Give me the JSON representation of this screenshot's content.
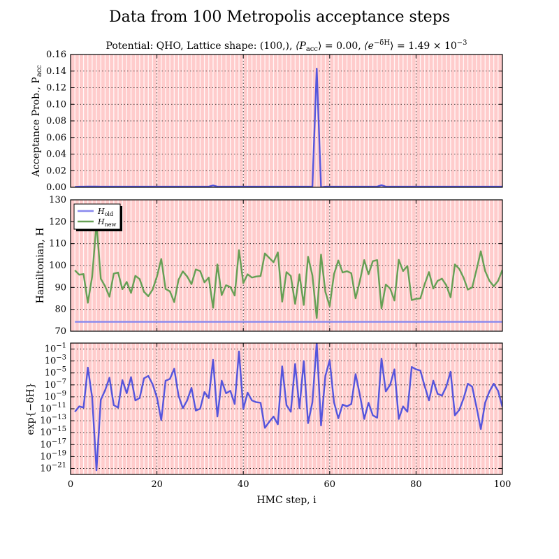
{
  "chart_data": {
    "type": "line",
    "title": "Data from 100 Metropolis acceptance steps",
    "subtitle_parts": {
      "prefix": "Potential: QHO, Lattice shape: (100,), ",
      "pacc": "⟨P",
      "pacc_sub": "acc",
      "pacc_val": "⟩ = 0.00, ",
      "edh": "⟨e",
      "edh_sup": "−δH",
      "edh_val": "⟩ = 1.49 × 10",
      "edh_exp": "−3"
    },
    "xlabel": "HMC step, i",
    "xlim": [
      0,
      100
    ],
    "x_ticks": [
      0,
      20,
      40,
      60,
      80,
      100
    ],
    "accepted_steps_color": "#ffcccc",
    "panels": [
      {
        "id": "acceptance",
        "ylabel": "Acceptance Prob., P",
        "ylabel_sub": "acc",
        "ylim": [
          0,
          0.16
        ],
        "y_ticks": [
          0.0,
          0.02,
          0.04,
          0.06,
          0.08,
          0.1,
          0.12,
          0.14,
          0.16
        ],
        "y_tick_labels": [
          "0.00",
          "0.02",
          "0.04",
          "0.06",
          "0.08",
          "0.10",
          "0.12",
          "0.14",
          "0.16"
        ],
        "series": [
          {
            "color": "#5555dd",
            "x": [
              1,
              2,
              3,
              4,
              5,
              6,
              7,
              8,
              9,
              10,
              11,
              12,
              13,
              14,
              15,
              16,
              17,
              18,
              19,
              20,
              21,
              22,
              23,
              24,
              25,
              26,
              27,
              28,
              29,
              30,
              31,
              32,
              33,
              34,
              35,
              36,
              37,
              38,
              39,
              40,
              41,
              42,
              43,
              44,
              45,
              46,
              47,
              48,
              49,
              50,
              51,
              52,
              53,
              54,
              55,
              56,
              57,
              58,
              59,
              60,
              61,
              62,
              63,
              64,
              65,
              66,
              67,
              68,
              69,
              70,
              71,
              72,
              73,
              74,
              75,
              76,
              77,
              78,
              79,
              80,
              81,
              82,
              83,
              84,
              85,
              86,
              87,
              88,
              89,
              90,
              91,
              92,
              93,
              94,
              95,
              96,
              97,
              98,
              99,
              100
            ],
            "y": [
              0.0005,
              0.0008,
              0.0008,
              0.0009,
              0.0009,
              0.0009,
              0.0008,
              0.0008,
              0.0008,
              0.0008,
              0.0008,
              0.0008,
              0.0008,
              0.0008,
              0.0008,
              0.0008,
              0.0008,
              0.0008,
              0.0008,
              0.0008,
              0.0008,
              0.0008,
              0.0008,
              0.0008,
              0.0008,
              0.0008,
              0.0008,
              0.0008,
              0.0008,
              0.0008,
              0.0008,
              0.0008,
              0.0022,
              0.0008,
              0.0008,
              0.0008,
              0.0008,
              0.0008,
              0.0008,
              0.0008,
              0.0008,
              0.0008,
              0.0008,
              0.0008,
              0.0008,
              0.0008,
              0.0008,
              0.0008,
              0.0008,
              0.0008,
              0.0008,
              0.0008,
              0.0008,
              0.0008,
              0.0008,
              0.0008,
              0.143,
              0.0,
              0.0008,
              0.0008,
              0.0008,
              0.0008,
              0.0008,
              0.0008,
              0.0008,
              0.0008,
              0.0008,
              0.0008,
              0.0008,
              0.0008,
              0.0008,
              0.0025,
              0.0008,
              0.0008,
              0.0008,
              0.0008,
              0.0008,
              0.0008,
              0.0008,
              0.0008,
              0.0008,
              0.0008,
              0.0008,
              0.0008,
              0.0008,
              0.0008,
              0.0008,
              0.0008,
              0.0008,
              0.0008,
              0.0008,
              0.0008,
              0.0008,
              0.0008,
              0.0008,
              0.0008,
              0.0008,
              0.0008,
              0.0008,
              0.0008
            ]
          }
        ]
      },
      {
        "id": "hamiltonian",
        "ylabel": "Hamiltonian, H",
        "ylim": [
          70,
          130
        ],
        "y_ticks": [
          70,
          80,
          90,
          100,
          110,
          120,
          130
        ],
        "y_tick_labels": [
          "70",
          "80",
          "90",
          "100",
          "110",
          "120",
          "130"
        ],
        "legend": {
          "placement": "top-left",
          "entries": [
            {
              "label": "H",
              "sub": "old",
              "color": "#8888ee"
            },
            {
              "label": "H",
              "sub": "new",
              "color": "#66a055"
            }
          ]
        },
        "series": [
          {
            "name": "H_old",
            "color": "#8888ee",
            "x": [
              1,
              100
            ],
            "y": [
              74.3,
              74.3
            ]
          },
          {
            "name": "H_new",
            "color": "#66a055",
            "x": [
              1,
              2,
              3,
              4,
              5,
              6,
              7,
              8,
              9,
              10,
              11,
              12,
              13,
              14,
              15,
              16,
              17,
              18,
              19,
              20,
              21,
              22,
              23,
              24,
              25,
              26,
              27,
              28,
              29,
              30,
              31,
              32,
              33,
              34,
              35,
              36,
              37,
              38,
              39,
              40,
              41,
              42,
              43,
              44,
              45,
              46,
              47,
              48,
              49,
              50,
              51,
              52,
              53,
              54,
              55,
              56,
              57,
              58,
              59,
              60,
              61,
              62,
              63,
              64,
              65,
              66,
              67,
              68,
              69,
              70,
              71,
              72,
              73,
              74,
              75,
              76,
              77,
              78,
              79,
              80,
              81,
              82,
              83,
              84,
              85,
              86,
              87,
              88,
              89,
              90,
              91,
              92,
              93,
              94,
              95,
              96,
              97,
              98,
              99,
              100
            ],
            "y": [
              97.8,
              95.8,
              96.1,
              83.0,
              95.0,
              119.5,
              94.0,
              90.5,
              85.8,
              96.3,
              96.8,
              89.2,
              92.5,
              87.5,
              95.3,
              93.8,
              88.0,
              86.0,
              89.0,
              95.0,
              103.0,
              89.3,
              88.2,
              83.3,
              93.5,
              97.3,
              95.0,
              91.5,
              98.2,
              97.5,
              92.3,
              94.5,
              80.7,
              100.5,
              86.5,
              91.0,
              90.2,
              86.3,
              107.0,
              92.0,
              96.0,
              94.5,
              95.0,
              95.2,
              105.5,
              103.5,
              101.5,
              106.0,
              83.5,
              97.0,
              95.2,
              82.5,
              96.0,
              82.0,
              104.0,
              95.5,
              76.0,
              105.0,
              88.0,
              81.5,
              96.0,
              102.3,
              96.8,
              97.4,
              96.5,
              85.0,
              93.0,
              102.5,
              96.0,
              102.0,
              102.5,
              80.5,
              91.3,
              89.5,
              84.0,
              102.6,
              97.5,
              99.8,
              84.2,
              84.8,
              85.0,
              91.5,
              97.0,
              89.5,
              93.0,
              94.0,
              91.0,
              85.5,
              100.5,
              98.5,
              94.5,
              89.0,
              90.0,
              98.0,
              106.5,
              97.5,
              93.0,
              90.5,
              93.0,
              98.0
            ]
          }
        ]
      },
      {
        "id": "expdh",
        "ylabel": "exp{−δH}",
        "scale": "log",
        "ylim_exp": [
          -22,
          0
        ],
        "y_tick_exps": [
          -21,
          -19,
          -17,
          -15,
          -13,
          -11,
          -9,
          -7,
          -5,
          -3,
          -1
        ],
        "y_tick_base": "10",
        "series": [
          {
            "color": "#5555dd",
            "x": [
              1,
              2,
              3,
              4,
              5,
              6,
              7,
              8,
              9,
              10,
              11,
              12,
              13,
              14,
              15,
              16,
              17,
              18,
              19,
              20,
              21,
              22,
              23,
              24,
              25,
              26,
              27,
              28,
              29,
              30,
              31,
              32,
              33,
              34,
              35,
              36,
              37,
              38,
              39,
              40,
              41,
              42,
              43,
              44,
              45,
              46,
              47,
              48,
              49,
              50,
              51,
              52,
              53,
              54,
              55,
              56,
              57,
              58,
              59,
              60,
              61,
              62,
              63,
              64,
              65,
              66,
              67,
              68,
              69,
              70,
              71,
              72,
              73,
              74,
              75,
              76,
              77,
              78,
              79,
              80,
              81,
              82,
              83,
              84,
              85,
              86,
              87,
              88,
              89,
              90,
              91,
              92,
              93,
              94,
              95,
              96,
              97,
              98,
              99,
              100
            ],
            "y_log10": [
              -11.5,
              -10.6,
              -10.8,
              -4.1,
              -9.1,
              -21.3,
              -9.5,
              -7.9,
              -5.8,
              -10.4,
              -10.8,
              -6.2,
              -8.4,
              -5.7,
              -9.6,
              -9.2,
              -5.9,
              -5.5,
              -6.9,
              -9.1,
              -12.9,
              -6.3,
              -6.0,
              -4.3,
              -8.8,
              -10.9,
              -9.6,
              -7.5,
              -11.3,
              -11.0,
              -8.2,
              -9.2,
              -2.8,
              -12.3,
              -6.3,
              -8.4,
              -8.0,
              -10.2,
              -1.4,
              -11.0,
              -8.3,
              -9.6,
              -9.9,
              -10.0,
              -14.2,
              -13.2,
              -12.3,
              -13.6,
              -3.9,
              -10.4,
              -11.5,
              -3.5,
              -10.9,
              -3.0,
              -13.4,
              -9.9,
              0.1,
              -13.8,
              -5.5,
              -2.9,
              -9.9,
              -12.6,
              -10.3,
              -10.6,
              -10.2,
              -5.2,
              -8.7,
              -12.7,
              -10.0,
              -12.1,
              -12.5,
              -2.6,
              -8.1,
              -7.0,
              -4.4,
              -12.7,
              -10.6,
              -11.5,
              -4.0,
              -4.4,
              -4.6,
              -7.2,
              -9.6,
              -6.3,
              -8.5,
              -8.8,
              -7.3,
              -4.8,
              -12.1,
              -11.2,
              -9.3,
              -6.8,
              -7.3,
              -10.7,
              -14.4,
              -10.0,
              -8.1,
              -6.8,
              -8.0,
              -10.7
            ]
          }
        ]
      }
    ]
  }
}
